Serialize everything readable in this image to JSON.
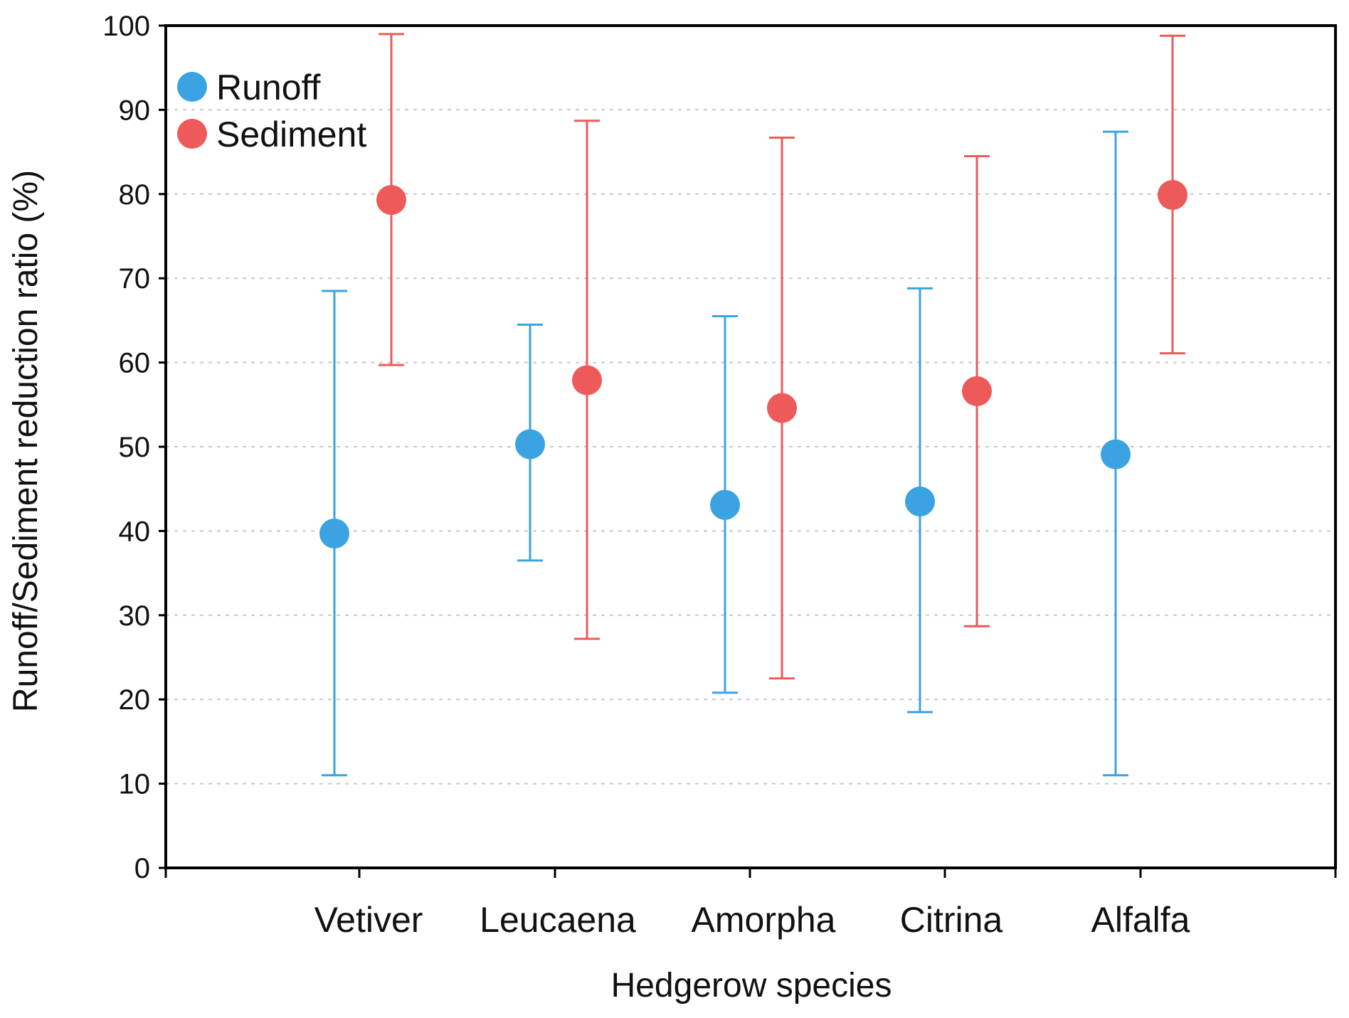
{
  "chart_data": {
    "type": "scatter",
    "subtype": "point-with-error-bars",
    "title": "",
    "xlabel": "Hedgerow species",
    "ylabel": "Runoff/Sediment reduction ratio (%)",
    "ylim": [
      0,
      100
    ],
    "yticks": [
      "0",
      "10",
      "20",
      "30",
      "40",
      "50",
      "60",
      "70",
      "80",
      "90",
      "100"
    ],
    "grid": "horizontal dotted",
    "legend_position": "top-left",
    "categories": [
      "Vetiver",
      "Leucaena",
      "Amorpha",
      "Citrina",
      "Alfalfa"
    ],
    "series": [
      {
        "name": "Runoff",
        "color": "#3ba3e2",
        "values": [
          39.7,
          50.3,
          43.1,
          43.5,
          49.1
        ],
        "lower": [
          11.0,
          36.5,
          20.8,
          18.5,
          11.0
        ],
        "upper": [
          68.5,
          64.5,
          65.5,
          68.8,
          87.4
        ]
      },
      {
        "name": "Sediment",
        "color": "#ee5a5a",
        "values": [
          79.3,
          57.9,
          54.6,
          56.6,
          79.9
        ],
        "lower": [
          59.7,
          27.2,
          22.5,
          28.7,
          61.1
        ],
        "upper": [
          99.0,
          88.7,
          86.7,
          84.5,
          98.8
        ]
      }
    ]
  }
}
